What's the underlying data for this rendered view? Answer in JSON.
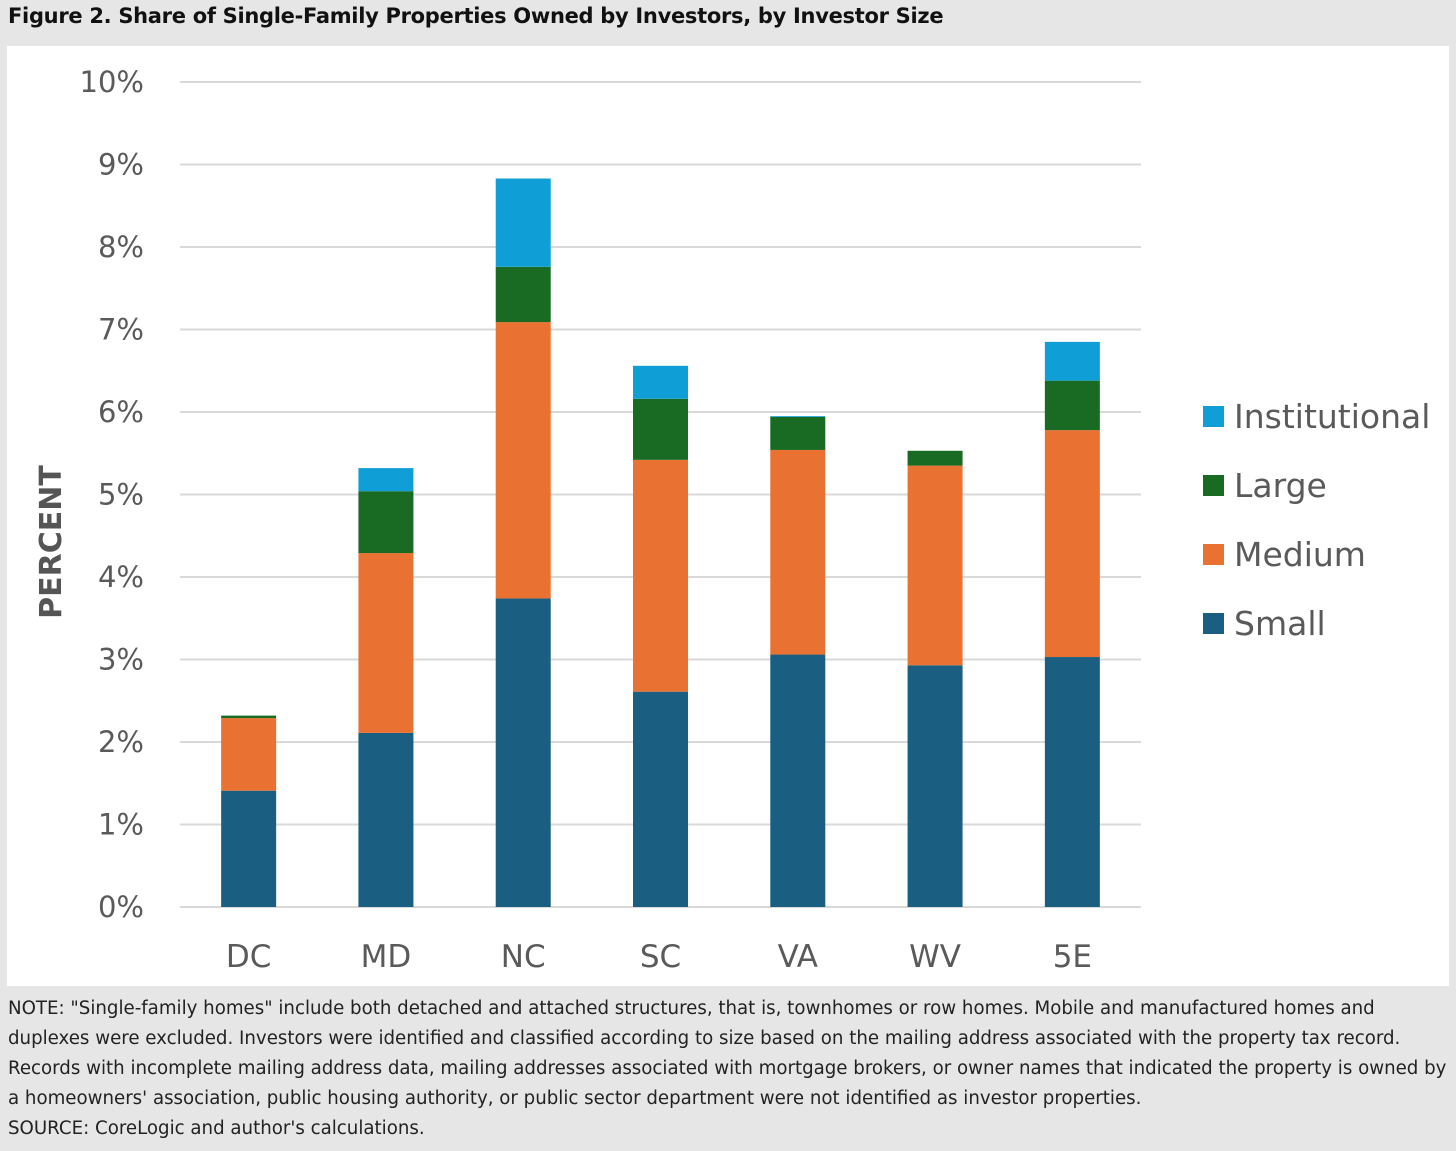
{
  "title": "Figure 2. Share of Single-Family Properties Owned by Investors, by Investor Size",
  "note": "NOTE: \"Single-family homes\" include both detached and attached structures, that is, townhomes or row homes. Mobile and manufactured homes and duplexes were excluded. Investors were identified and classified according to size based on the mailing address associated with the property tax record. Records with incomplete mailing address data, mailing addresses associated with mortgage brokers, or owner names that indicated the property is owned by a homeowners' association, public housing authority, or public sector department were not identified as investor properties.",
  "source": "SOURCE: CoreLogic and author's calculations.",
  "chart_data": {
    "type": "bar",
    "stacked": true,
    "ylabel": "PERCENT",
    "xlabel": "",
    "ylim": [
      0,
      10
    ],
    "yticks": [
      0,
      1,
      2,
      3,
      4,
      5,
      6,
      7,
      8,
      9,
      10
    ],
    "ytick_labels": [
      "0%",
      "1%",
      "2%",
      "3%",
      "4%",
      "5%",
      "6%",
      "7%",
      "8%",
      "9%",
      "10%"
    ],
    "grid": true,
    "legend_position": "right",
    "categories": [
      "DC",
      "MD",
      "NC",
      "SC",
      "VA",
      "WV",
      "5E"
    ],
    "series": [
      {
        "name": "Small",
        "color": "#1a5f82",
        "values": [
          1.41,
          2.11,
          3.74,
          2.61,
          3.06,
          2.93,
          3.03
        ]
      },
      {
        "name": "Medium",
        "color": "#e97132",
        "values": [
          0.88,
          2.18,
          3.35,
          2.81,
          2.48,
          2.42,
          2.75
        ]
      },
      {
        "name": "Large",
        "color": "#196b24",
        "values": [
          0.03,
          0.75,
          0.67,
          0.74,
          0.4,
          0.18,
          0.6
        ]
      },
      {
        "name": "Institutional",
        "color": "#0f9ed5",
        "values": [
          0.0,
          0.28,
          1.07,
          0.4,
          0.01,
          0.0,
          0.47
        ]
      }
    ],
    "legend_order": [
      "Institutional",
      "Large",
      "Medium",
      "Small"
    ]
  }
}
